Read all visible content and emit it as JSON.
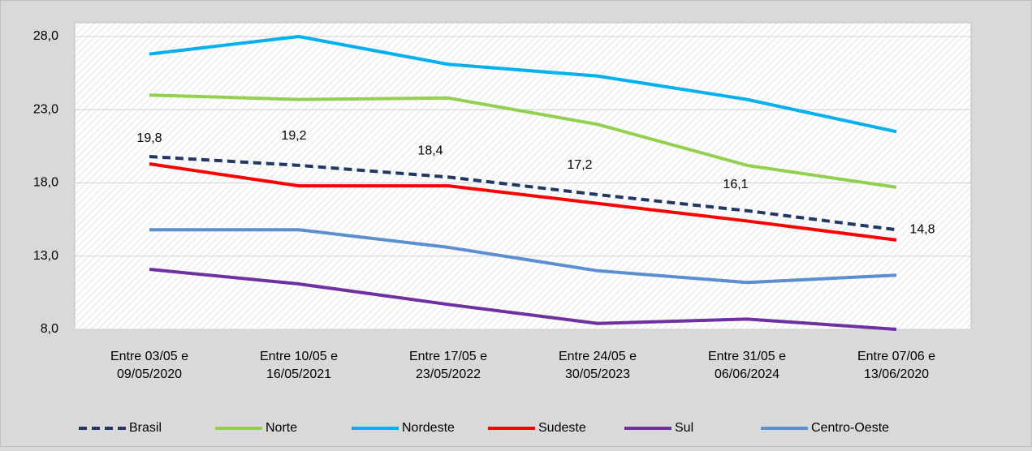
{
  "chart_data": {
    "type": "line",
    "categories": [
      "Entre 03/05 e\n09/05/2020",
      "Entre 10/05 e\n16/05/2021",
      "Entre 17/05 e\n23/05/2022",
      "Entre 24/05 e\n30/05/2023",
      "Entre 31/05 e\n06/06/2024",
      "Entre 07/06 e\n13/06/2020"
    ],
    "series": [
      {
        "name": "Brasil",
        "color": "#1f3864",
        "dashed": true,
        "values": [
          19.8,
          19.2,
          18.4,
          17.2,
          16.1,
          14.8
        ],
        "value_labels": [
          "19,8",
          "19,2",
          "18,4",
          "17,2",
          "16,1",
          "14,8"
        ]
      },
      {
        "name": "Norte",
        "color": "#92d050",
        "values": [
          24.0,
          23.7,
          23.8,
          22.0,
          19.2,
          17.7
        ]
      },
      {
        "name": "Nordeste",
        "color": "#00b0f0",
        "values": [
          26.8,
          28.0,
          26.1,
          25.3,
          23.7,
          21.5
        ]
      },
      {
        "name": "Sudeste",
        "color": "#ff0000",
        "values": [
          19.3,
          17.8,
          17.8,
          16.6,
          15.4,
          14.1
        ]
      },
      {
        "name": "Sul",
        "color": "#7030a0",
        "values": [
          12.1,
          11.1,
          9.7,
          8.4,
          8.7,
          8.0
        ]
      },
      {
        "name": "Centro-Oeste",
        "color": "#5b8fd0",
        "values": [
          14.8,
          14.8,
          13.6,
          12.0,
          11.2,
          11.7
        ]
      }
    ],
    "ylim": [
      8,
      28
    ],
    "yticks": [
      {
        "value": 8,
        "label": "8,0"
      },
      {
        "value": 13,
        "label": "13,0"
      },
      {
        "value": 18,
        "label": "18,0"
      },
      {
        "value": 23,
        "label": "23,0"
      },
      {
        "value": 28,
        "label": "28,0"
      }
    ],
    "grid": true,
    "legend": "bottom"
  }
}
